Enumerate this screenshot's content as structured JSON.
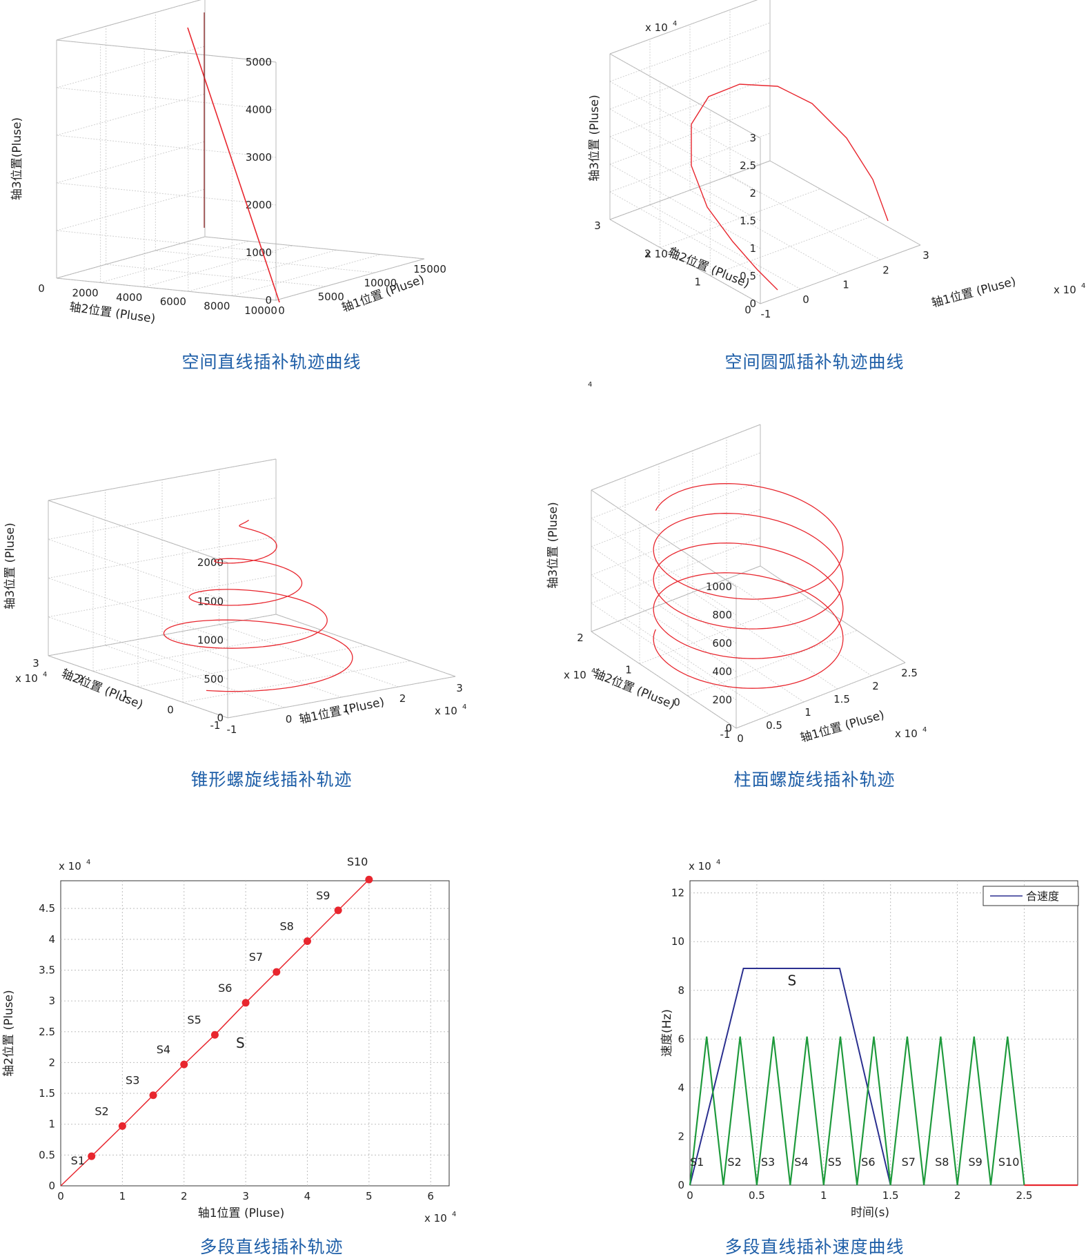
{
  "common": {
    "exp_label": "x 10",
    "exp_sup": "4"
  },
  "chart_data": [
    {
      "id": "line3d",
      "type": "line3d",
      "title": "空间直线插补轨迹曲线",
      "xlabel": "轴1位置 (Pluse)",
      "ylabel": "轴2位置 (Pluse)",
      "zlabel": "轴3位置(Pluse)",
      "x_ticks": [
        "0",
        "5000",
        "10000",
        "15000"
      ],
      "y_ticks": [
        "10000",
        "8000",
        "6000",
        "4000",
        "2000",
        "0"
      ],
      "z_ticks": [
        "0",
        "1000",
        "2000",
        "3000",
        "4000",
        "5000"
      ],
      "xlim": [
        0,
        15000
      ],
      "ylim": [
        0,
        10000
      ],
      "zlim": [
        0,
        5000
      ],
      "series": [
        {
          "color": "#e8262e",
          "points": [
            [
              0,
              0,
              0
            ],
            [
              15000,
              10000,
              5000
            ]
          ]
        }
      ],
      "grid": true
    },
    {
      "id": "arc3d",
      "type": "line3d",
      "title": "空间圆弧插补轨迹曲线",
      "xlabel": "轴1位置 (Pluse)",
      "ylabel": "轴2位置 (Pluse)",
      "zlabel": "轴3位置 (Pluse)",
      "x_ticks": [
        "-1",
        "0",
        "1",
        "2",
        "3"
      ],
      "y_ticks": [
        "3",
        "2",
        "1",
        "0"
      ],
      "z_ticks": [
        "0",
        "0.5",
        "1",
        "1.5",
        "2",
        "2.5",
        "3"
      ],
      "multiplier": "x 10^4",
      "xlim": [
        -1,
        3
      ],
      "ylim": [
        0,
        3
      ],
      "zlim": [
        0,
        3
      ],
      "series": [
        {
          "color": "#e8262e",
          "points": [
            [
              0.0,
              0.0,
              0.0
            ],
            [
              0.25,
              0.5,
              1.2
            ],
            [
              0.7,
              1.1,
              2.1
            ],
            [
              1.3,
              1.7,
              2.55
            ],
            [
              1.9,
              2.1,
              2.55
            ],
            [
              2.4,
              2.35,
              2.1
            ],
            [
              2.7,
              2.4,
              1.4
            ]
          ]
        }
      ],
      "grid": true
    },
    {
      "id": "cone3d",
      "type": "line3d",
      "title": "锥形螺旋线插补轨迹",
      "xlabel": "轴1位置 (Pluse)",
      "ylabel": "轴2位置 (Pluse)",
      "zlabel": "轴3位置 (Pluse)",
      "x_ticks": [
        "-1",
        "0",
        "1",
        "2",
        "3"
      ],
      "y_ticks": [
        "3",
        "2",
        "1",
        "0",
        "-1"
      ],
      "z_ticks": [
        "0",
        "500",
        "1000",
        "1500",
        "2000"
      ],
      "multiplier": "x 10^4",
      "xlim": [
        -1,
        3
      ],
      "ylim": [
        -1,
        3
      ],
      "zlim": [
        0,
        2000
      ],
      "series": [
        {
          "color": "#e8262e",
          "center": [
            1,
            1
          ],
          "r_start": 1.5,
          "r_end": 0.1,
          "z_start": 0,
          "z_end": 1900,
          "turns": 4
        }
      ],
      "grid": true
    },
    {
      "id": "cyl3d",
      "type": "line3d",
      "title": "柱面螺旋线插补轨迹",
      "xlabel": "轴1位置 (Pluse)",
      "ylabel": "轴2位置 (Pluse)",
      "zlabel": "轴3位置 (Pluse)",
      "x_ticks": [
        "0",
        "0.5",
        "1",
        "1.5",
        "2",
        "2.5"
      ],
      "y_ticks": [
        "2",
        "1",
        "0",
        "-1"
      ],
      "z_ticks": [
        "0",
        "200",
        "400",
        "600",
        "800",
        "1000"
      ],
      "z_exp": "4",
      "multiplier": "x 10^4",
      "xlim": [
        0,
        2.5
      ],
      "ylim": [
        -1,
        2
      ],
      "zlim": [
        0,
        1000
      ],
      "series": [
        {
          "color": "#e8262e",
          "center": [
            1.25,
            0.5
          ],
          "r": 1.0,
          "z_start": 0,
          "z_end": 840,
          "turns": 4
        }
      ],
      "grid": true
    },
    {
      "id": "multiseg",
      "type": "line",
      "title": "多段直线插补轨迹",
      "xlabel": "轴1位置 (Pluse)",
      "ylabel": "轴2位置 (Pluse)",
      "x_ticks": [
        "0",
        "1",
        "2",
        "3",
        "4",
        "5",
        "6"
      ],
      "y_ticks": [
        "0",
        "0.5",
        "1",
        "1.5",
        "2",
        "2.5",
        "3",
        "3.5",
        "4",
        "4.5"
      ],
      "multiplier": "x 10^4",
      "xlim": [
        0,
        6.3
      ],
      "ylim": [
        0,
        4.95
      ],
      "series": [
        {
          "color": "#e8262e",
          "x": [
            0,
            0.5,
            1,
            1.5,
            2,
            2.5,
            3,
            3.5,
            4,
            4.5,
            5
          ],
          "y": [
            0,
            0.48,
            0.97,
            1.47,
            1.97,
            2.45,
            2.97,
            3.47,
            3.97,
            4.47,
            4.97
          ]
        }
      ],
      "markers": [
        {
          "label": "S1",
          "x": 0.5,
          "y": 0.48
        },
        {
          "label": "S2",
          "x": 1,
          "y": 0.97
        },
        {
          "label": "S3",
          "x": 1.5,
          "y": 1.47
        },
        {
          "label": "S4",
          "x": 2,
          "y": 1.97
        },
        {
          "label": "S5",
          "x": 2.5,
          "y": 2.45
        },
        {
          "label": "S6",
          "x": 3,
          "y": 2.97
        },
        {
          "label": "S7",
          "x": 3.5,
          "y": 3.47
        },
        {
          "label": "S8",
          "x": 4,
          "y": 3.97
        },
        {
          "label": "S9",
          "x": 4.5,
          "y": 4.47
        },
        {
          "label": "S10",
          "x": 5,
          "y": 4.97
        }
      ],
      "annotation": "S",
      "grid": true
    },
    {
      "id": "speed",
      "type": "line",
      "title": "多段直线插补速度曲线",
      "xlabel": "时间(s)",
      "ylabel": "速度(Hz)",
      "x_ticks": [
        "0",
        "0.5",
        "1",
        "1.5",
        "2",
        "2.5"
      ],
      "y_ticks": [
        "0",
        "2",
        "4",
        "6",
        "8",
        "10",
        "12"
      ],
      "multiplier": "x 10^4",
      "xlim": [
        0,
        2.9
      ],
      "ylim": [
        0,
        12.5
      ],
      "legend": "合速度",
      "legend_position": "top-right",
      "series": [
        {
          "name": "合速度",
          "color": "#2a2f8f",
          "x": [
            0,
            0.4,
            1.12,
            1.5
          ],
          "y": [
            0,
            8.9,
            8.9,
            0
          ]
        },
        {
          "color": "#1e9a3c",
          "x": [
            0,
            0.125,
            0.25,
            0.375,
            0.5,
            0.625,
            0.75,
            0.875,
            1.0,
            1.125,
            1.25,
            1.375,
            1.5,
            1.625,
            1.75,
            1.875,
            2.0,
            2.125,
            2.25,
            2.375,
            2.5
          ],
          "y": [
            0,
            6.1,
            0,
            6.1,
            0,
            6.1,
            0,
            6.1,
            0,
            6.1,
            0,
            6.1,
            0,
            6.1,
            0,
            6.1,
            0,
            6.1,
            0,
            6.1,
            0
          ]
        },
        {
          "color": "#e8262e",
          "x": [
            2.5,
            2.9
          ],
          "y": [
            0,
            0
          ]
        }
      ],
      "segment_labels": [
        "S1",
        "S2",
        "S3",
        "S4",
        "S5",
        "S6",
        "S7",
        "S8",
        "S9",
        "S10"
      ],
      "annotation": "S",
      "grid": true
    }
  ]
}
